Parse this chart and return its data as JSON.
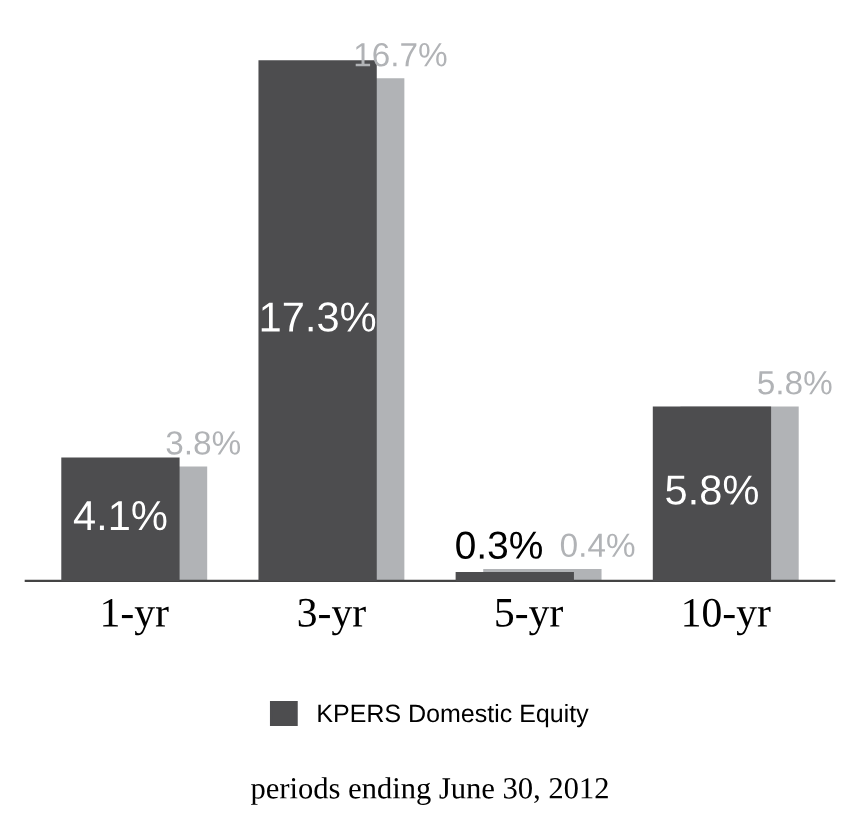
{
  "chart_data": {
    "type": "bar",
    "categories": [
      "1-yr",
      "3-yr",
      "5-yr",
      "10-yr"
    ],
    "series": [
      {
        "name": "KPERS Domestic Equity",
        "color": "#4d4d4f",
        "values": [
          4.1,
          17.3,
          0.3,
          5.8
        ],
        "value_labels": [
          "4.1%",
          "17.3%",
          "0.3%",
          "5.8%"
        ]
      },
      {
        "color": "#b1b3b6",
        "values": [
          3.8,
          16.7,
          0.4,
          5.8
        ],
        "value_labels": [
          "3.8%",
          "16.7%",
          "0.4%",
          "5.8%"
        ]
      }
    ],
    "legend": "bottom",
    "grid": false,
    "annotations": [
      "periods ending June 30, 2012"
    ]
  }
}
